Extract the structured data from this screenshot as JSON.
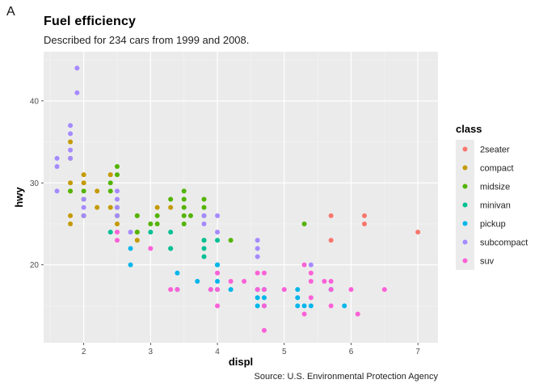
{
  "panel_label": "A",
  "caption": "Source: U.S. Environmental Protection Agency",
  "chart_data": {
    "type": "scatter",
    "title": "Fuel efficiency",
    "subtitle": "Described for 234 cars from 1999 and 2008.",
    "xlabel": "displ",
    "ylabel": "hwy",
    "xlim": [
      1.4,
      7.3
    ],
    "ylim": [
      10.5,
      46
    ],
    "x_ticks": [
      2,
      3,
      4,
      5,
      6,
      7
    ],
    "y_ticks": [
      20,
      30,
      40
    ],
    "grid": true,
    "legend": {
      "title": "class",
      "position": "right"
    },
    "series": [
      {
        "name": "2seater",
        "color": "#F8766D",
        "x": [
          5.7,
          5.7,
          6.2,
          6.2,
          7.0
        ],
        "y": [
          26,
          23,
          26,
          25,
          24
        ]
      },
      {
        "name": "compact",
        "color": "#C49A00",
        "x": [
          1.8,
          1.8,
          1.8,
          1.8,
          1.8,
          1.8,
          2.0,
          2.0,
          2.0,
          2.0,
          2.2,
          2.2,
          2.4,
          2.4,
          2.5,
          2.5,
          2.5,
          2.8,
          2.8,
          2.8,
          3.1,
          3.3
        ],
        "y": [
          29,
          26,
          25,
          35,
          33,
          30,
          31,
          30,
          28,
          26,
          29,
          27,
          31,
          27,
          26,
          25,
          27,
          26,
          24,
          23,
          27,
          27
        ]
      },
      {
        "name": "midsize",
        "color": "#53B400",
        "x": [
          1.8,
          2.0,
          2.0,
          2.0,
          2.4,
          2.4,
          2.5,
          2.5,
          2.5,
          2.5,
          2.8,
          2.8,
          3.0,
          3.1,
          3.1,
          3.3,
          3.5,
          3.5,
          3.5,
          3.5,
          3.5,
          3.6,
          3.8,
          3.8,
          3.8,
          3.8,
          4.2,
          5.3
        ],
        "y": [
          29,
          29,
          28,
          26,
          30,
          29,
          32,
          31,
          27,
          26,
          26,
          24,
          25,
          26,
          25,
          28,
          29,
          28,
          27,
          26,
          25,
          26,
          28,
          27,
          26,
          23,
          23,
          25
        ]
      },
      {
        "name": "minivan",
        "color": "#00C094",
        "x": [
          2.4,
          3.0,
          3.3,
          3.3,
          3.3,
          3.8,
          3.8,
          3.8,
          4.0,
          4.0
        ],
        "y": [
          24,
          24,
          24,
          22,
          22,
          22,
          21,
          23,
          23,
          20
        ]
      },
      {
        "name": "pickup",
        "color": "#00B6EB",
        "x": [
          2.7,
          2.7,
          3.4,
          3.4,
          3.7,
          3.9,
          4.0,
          4.0,
          4.0,
          4.2,
          4.6,
          4.6,
          4.6,
          4.7,
          4.7,
          4.7,
          5.2,
          5.2,
          5.2,
          5.3,
          5.4,
          5.7,
          5.7,
          5.9
        ],
        "y": [
          22,
          20,
          19,
          17,
          18,
          17,
          20,
          18,
          17,
          17,
          17,
          16,
          15,
          17,
          16,
          15,
          17,
          16,
          15,
          15,
          15,
          17,
          17,
          15
        ]
      },
      {
        "name": "subcompact",
        "color": "#A58AFF",
        "x": [
          1.6,
          1.6,
          1.6,
          1.8,
          1.8,
          1.8,
          1.8,
          1.9,
          1.9,
          2.0,
          2.0,
          2.0,
          2.5,
          2.5,
          2.5,
          2.5,
          2.7,
          3.8,
          3.8,
          4.0,
          4.0,
          4.6,
          4.6,
          4.6,
          5.4
        ],
        "y": [
          33,
          32,
          29,
          37,
          36,
          34,
          33,
          44,
          41,
          28,
          27,
          26,
          29,
          28,
          27,
          26,
          24,
          26,
          25,
          26,
          24,
          23,
          22,
          21,
          20
        ]
      },
      {
        "name": "suv",
        "color": "#FB61D7",
        "x": [
          2.5,
          2.5,
          3.0,
          3.3,
          3.4,
          3.9,
          4.0,
          4.0,
          4.0,
          4.2,
          4.4,
          4.6,
          4.6,
          4.7,
          4.7,
          4.7,
          5.0,
          5.3,
          5.3,
          5.4,
          5.4,
          5.4,
          5.6,
          5.7,
          5.7,
          5.7,
          6.0,
          6.1,
          6.5,
          4.7
        ],
        "y": [
          23,
          24,
          22,
          17,
          17,
          17,
          19,
          17,
          15,
          18,
          18,
          19,
          17,
          19,
          17,
          15,
          17,
          20,
          14,
          19,
          18,
          16,
          18,
          18,
          17,
          15,
          17,
          14,
          17,
          12
        ]
      }
    ]
  }
}
